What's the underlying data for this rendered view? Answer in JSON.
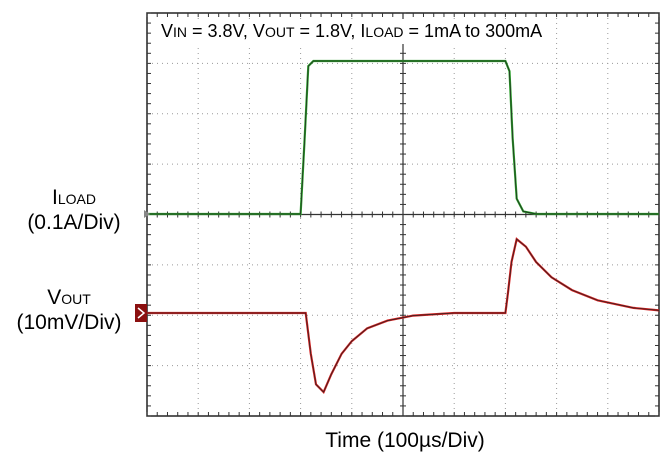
{
  "chart_data": {
    "type": "line",
    "conditions": {
      "v": "V",
      "in_sub": "IN",
      "vin_val": " = 3.8V, ",
      "vout_v": "V",
      "out_sub": "OUT",
      "vout_val": " = 1.8V, ",
      "i": "I",
      "load_sub": "LOAD",
      "iload_val": " = 1mA to 300mA"
    },
    "channel_labels": {
      "iload": {
        "main": "I",
        "sub": "LOAD",
        "scale": "(0.1A/Div)"
      },
      "vout": {
        "main": "V",
        "sub": "OUT",
        "scale": "(10mV/Div)"
      }
    },
    "xlabel": "Time  (100µs/Div)",
    "x_divisions": 10,
    "y_divisions": 8,
    "xlim": [
      0,
      1000
    ],
    "x_unit": "µs",
    "series": [
      {
        "id": "iload",
        "color": "#2aa02a",
        "unit": "A",
        "points": [
          [
            0,
            0
          ],
          [
            300,
            0
          ],
          [
            308,
            0.15
          ],
          [
            315,
            0.29
          ],
          [
            325,
            0.3
          ],
          [
            700,
            0.3
          ],
          [
            708,
            0.28
          ],
          [
            714,
            0.15
          ],
          [
            722,
            0.03
          ],
          [
            735,
            0.005
          ],
          [
            760,
            0
          ],
          [
            1000,
            0
          ]
        ]
      },
      {
        "id": "vout",
        "color": "#d42020",
        "unit": "mV",
        "points": [
          [
            0,
            0
          ],
          [
            310,
            0
          ],
          [
            320,
            -8
          ],
          [
            330,
            -14
          ],
          [
            345,
            -15.5
          ],
          [
            360,
            -12
          ],
          [
            380,
            -8
          ],
          [
            400,
            -5.5
          ],
          [
            430,
            -3
          ],
          [
            470,
            -1.5
          ],
          [
            520,
            -0.5
          ],
          [
            600,
            0
          ],
          [
            700,
            0
          ],
          [
            705,
            4
          ],
          [
            712,
            10
          ],
          [
            722,
            14.5
          ],
          [
            740,
            13
          ],
          [
            760,
            10
          ],
          [
            790,
            7
          ],
          [
            830,
            4.5
          ],
          [
            880,
            2.5
          ],
          [
            950,
            1
          ],
          [
            1000,
            0.5
          ]
        ]
      }
    ]
  }
}
